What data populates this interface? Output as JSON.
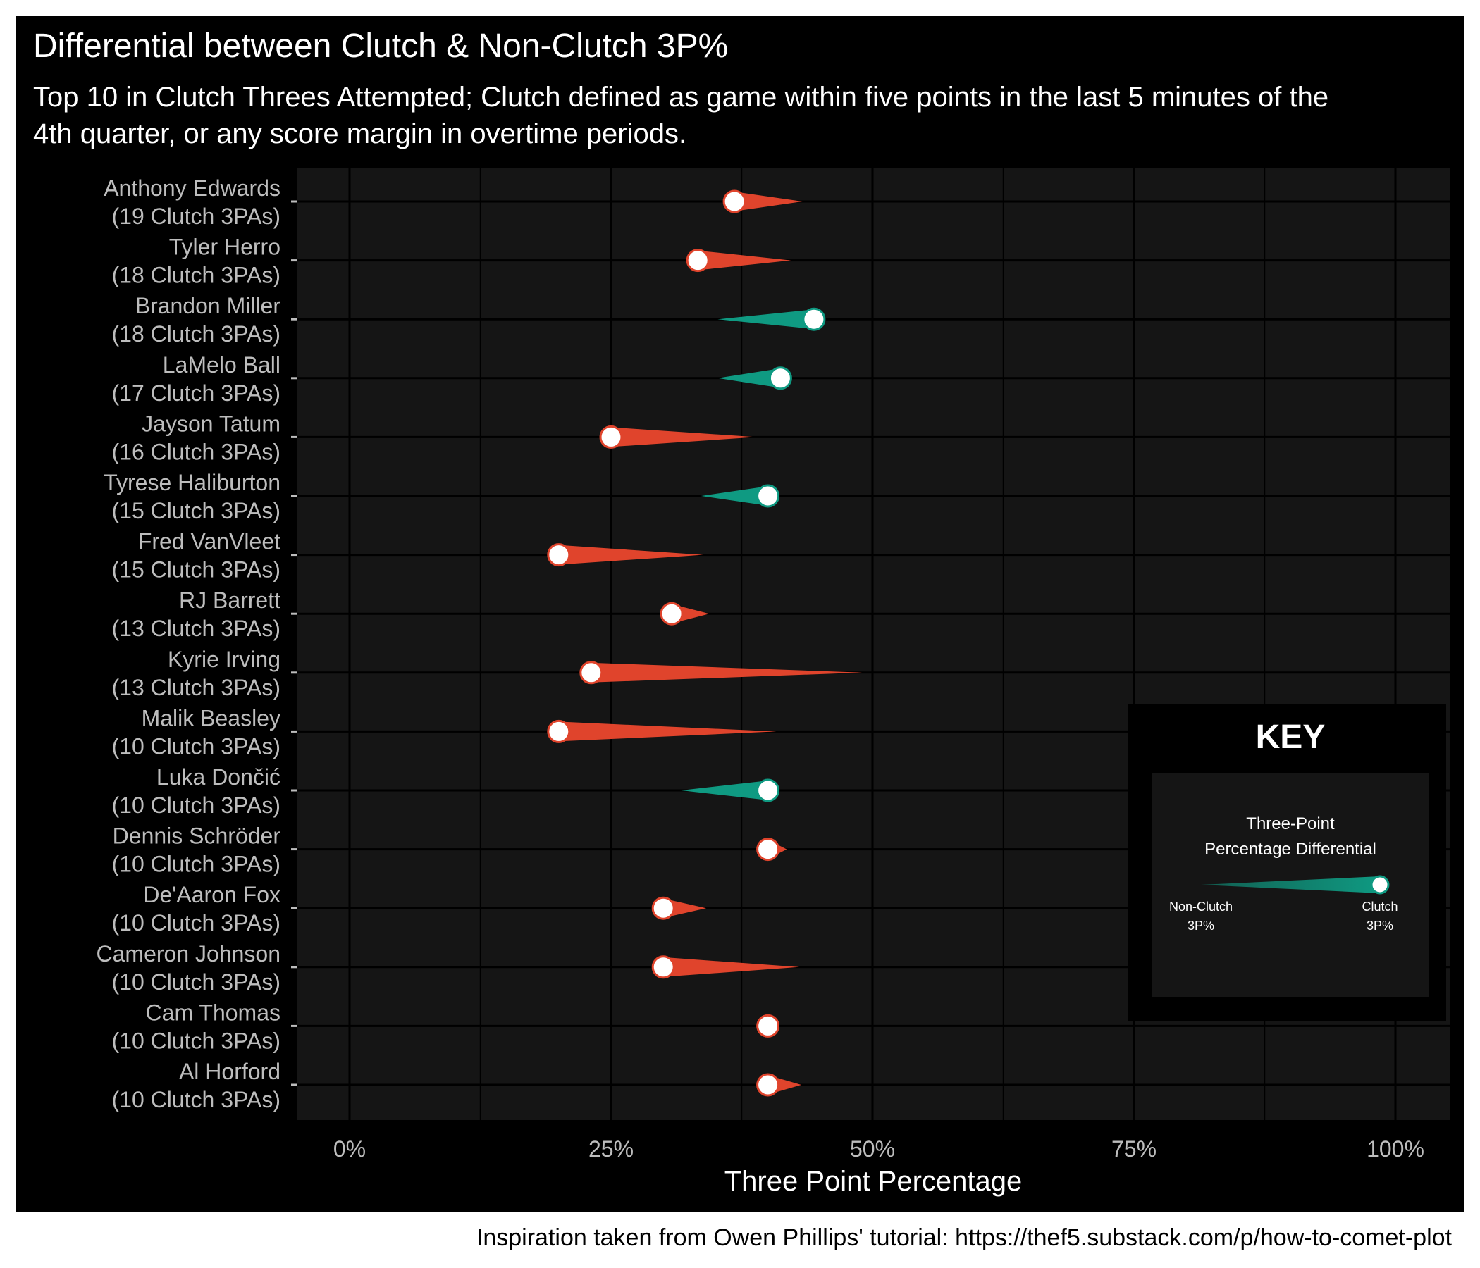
{
  "title": "Differential between Clutch & Non-Clutch 3P%",
  "subtitle": "Top 10 in Clutch Threes Attempted; Clutch defined as game within five points in the last 5 minutes of the 4th quarter, or any score margin in overtime periods.",
  "caption": "Inspiration taken from Owen Phillips' tutorial: https://thef5.substack.com/p/how-to-comet-plot",
  "colors": {
    "background": "#000000",
    "panel": "#151515",
    "decline": "#e0442c",
    "improve": "#0f9a82",
    "text_axis": "#bdbdbd"
  },
  "key": {
    "title": "KEY",
    "heading_line1": "Three-Point",
    "heading_line2": "Percentage Differential",
    "left_label_line1": "Non-Clutch",
    "left_label_line2": "3P%",
    "right_label_line1": "Clutch",
    "right_label_line2": "3P%"
  },
  "chart_data": {
    "type": "comet",
    "title": "Differential between Clutch & Non-Clutch 3P%",
    "subtitle": "Top 10 in Clutch Threes Attempted; Clutch defined as game within five points in the last 5 minutes of the 4th quarter, or any score margin in overtime periods.",
    "xlabel": "Three Point Percentage",
    "ylabel": "",
    "xlim": [
      -0.05,
      1.05
    ],
    "x_ticks": [
      0,
      0.25,
      0.5,
      0.75,
      1.0
    ],
    "x_tick_labels": [
      "0%",
      "25%",
      "50%",
      "75%",
      "100%"
    ],
    "grid": true,
    "legend": "bottom-right key panel",
    "series": [
      {
        "name": "Non-Clutch 3P%",
        "role": "comet tail"
      },
      {
        "name": "Clutch 3P%",
        "role": "comet head"
      }
    ],
    "players": [
      {
        "name": "Anthony Edwards",
        "attempts_label": "(19 Clutch 3PAs)",
        "non_clutch": 0.433,
        "clutch": 0.368
      },
      {
        "name": "Tyler Herro",
        "attempts_label": "(18 Clutch 3PAs)",
        "non_clutch": 0.422,
        "clutch": 0.333
      },
      {
        "name": "Brandon Miller",
        "attempts_label": "(18 Clutch 3PAs)",
        "non_clutch": 0.352,
        "clutch": 0.444
      },
      {
        "name": "LaMelo Ball",
        "attempts_label": "(17 Clutch 3PAs)",
        "non_clutch": 0.352,
        "clutch": 0.412
      },
      {
        "name": "Jayson Tatum",
        "attempts_label": "(16 Clutch 3PAs)",
        "non_clutch": 0.389,
        "clutch": 0.25
      },
      {
        "name": "Tyrese Haliburton",
        "attempts_label": "(15 Clutch 3PAs)",
        "non_clutch": 0.336,
        "clutch": 0.4
      },
      {
        "name": "Fred VanVleet",
        "attempts_label": "(15 Clutch 3PAs)",
        "non_clutch": 0.338,
        "clutch": 0.2
      },
      {
        "name": "RJ Barrett",
        "attempts_label": "(13 Clutch 3PAs)",
        "non_clutch": 0.344,
        "clutch": 0.308
      },
      {
        "name": "Kyrie Irving",
        "attempts_label": "(13 Clutch 3PAs)",
        "non_clutch": 0.49,
        "clutch": 0.231
      },
      {
        "name": "Malik Beasley",
        "attempts_label": "(10 Clutch 3PAs)",
        "non_clutch": 0.408,
        "clutch": 0.2
      },
      {
        "name": "Luka Dončić",
        "attempts_label": "(10 Clutch 3PAs)",
        "non_clutch": 0.317,
        "clutch": 0.4
      },
      {
        "name": "Dennis Schröder",
        "attempts_label": "(10 Clutch 3PAs)",
        "non_clutch": 0.418,
        "clutch": 0.4
      },
      {
        "name": "De'Aaron Fox",
        "attempts_label": "(10 Clutch 3PAs)",
        "non_clutch": 0.341,
        "clutch": 0.3
      },
      {
        "name": "Cameron Johnson",
        "attempts_label": "(10 Clutch 3PAs)",
        "non_clutch": 0.43,
        "clutch": 0.3
      },
      {
        "name": "Cam Thomas",
        "attempts_label": "(10 Clutch 3PAs)",
        "non_clutch": 0.4,
        "clutch": 0.4
      },
      {
        "name": "Al Horford",
        "attempts_label": "(10 Clutch 3PAs)",
        "non_clutch": 0.432,
        "clutch": 0.4
      }
    ]
  }
}
